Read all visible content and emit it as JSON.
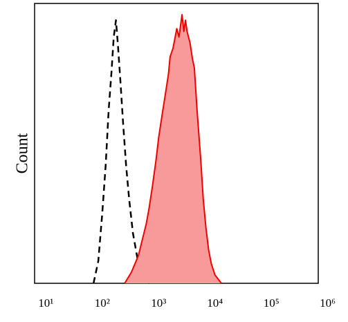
{
  "chart_data": {
    "type": "line",
    "y_label": "Count",
    "log_x": true,
    "xlim": [
      6.3,
      680000
    ],
    "ylim": [
      0,
      100
    ],
    "xticks": [
      {
        "value": 10,
        "label": "10¹"
      },
      {
        "value": 100,
        "label": "10²"
      },
      {
        "value": 1000,
        "label": "10³"
      },
      {
        "value": 10000,
        "label": "10⁴"
      },
      {
        "value": 100000,
        "label": "10⁵"
      },
      {
        "value": 1000000,
        "label": "10⁶"
      }
    ],
    "series": [
      {
        "color": "#000000",
        "line_style": "dashed",
        "fill": false,
        "x": [
          70,
          85,
          100,
          115,
          130,
          145,
          160,
          175,
          190,
          210,
          235,
          265,
          300,
          350,
          420,
          500,
          600,
          700
        ],
        "values": [
          0,
          8,
          25,
          42,
          62,
          75,
          88,
          94,
          85,
          72,
          57,
          42,
          30,
          18,
          9,
          4,
          1,
          0
        ]
      },
      {
        "color": "#ee0000",
        "line_style": "solid",
        "fill": "#f99a9a",
        "x": [
          250,
          330,
          440,
          520,
          600,
          680,
          780,
          900,
          1000,
          1150,
          1350,
          1500,
          1600,
          1800,
          2100,
          2300,
          2600,
          2800,
          3000,
          3200,
          3600,
          4000,
          4300,
          4800,
          5600,
          6200,
          6900,
          7700,
          8600,
          10000,
          13000
        ],
        "values": [
          0,
          4,
          10,
          16,
          21,
          27,
          35,
          44,
          52,
          60,
          69,
          75,
          81,
          84,
          91,
          88,
          96,
          90,
          94,
          90,
          86,
          80,
          77,
          62,
          44,
          30,
          20,
          12,
          7,
          3,
          0
        ]
      }
    ]
  }
}
